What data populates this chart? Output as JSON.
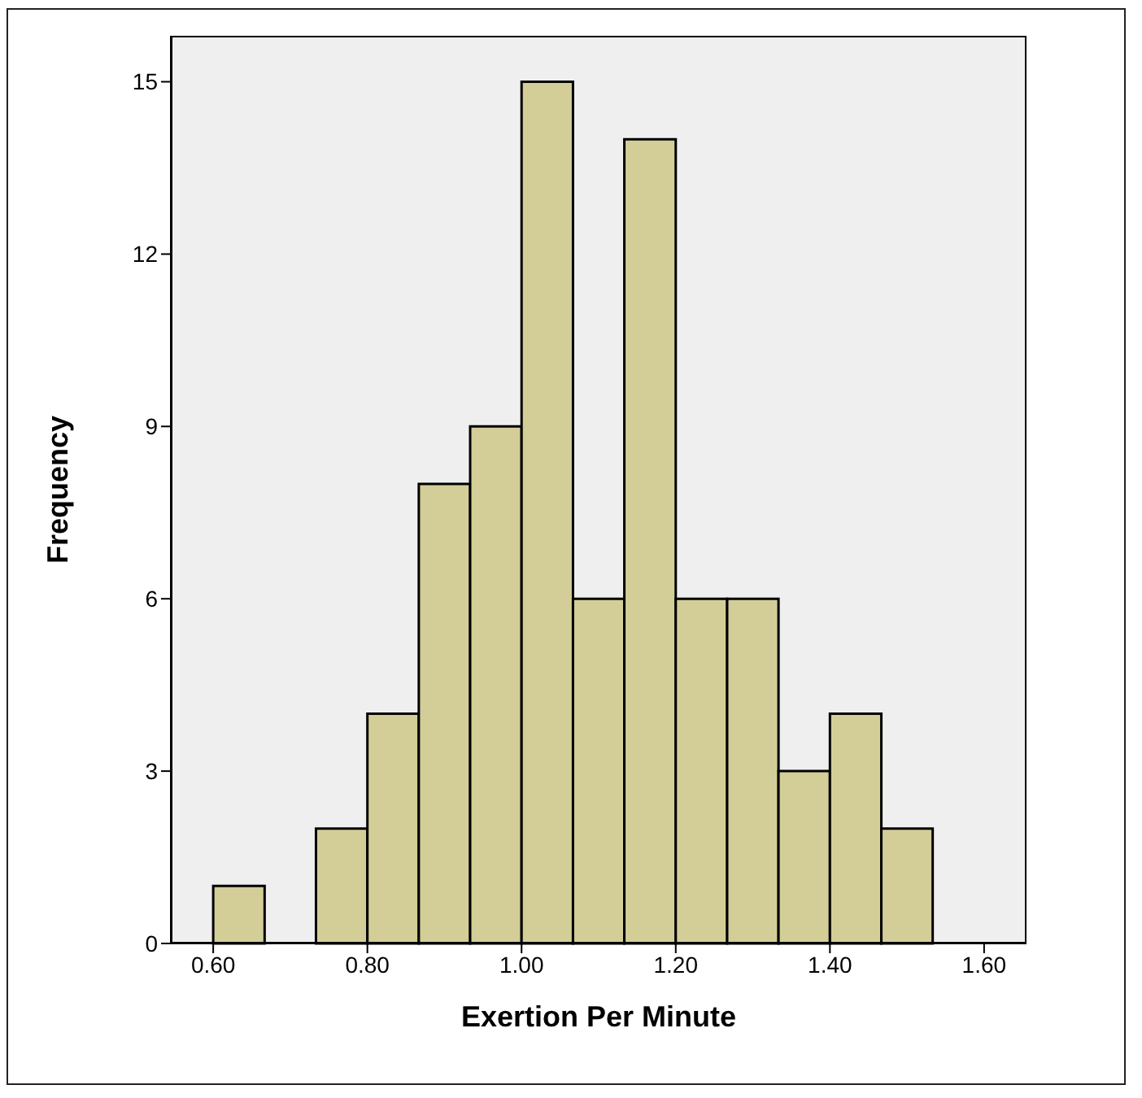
{
  "chart_data": {
    "type": "histogram",
    "xlabel": "Exertion Per Minute",
    "ylabel": "Frequency",
    "bins": [
      0.6,
      0.6667,
      0.7333,
      0.8,
      0.8667,
      0.9333,
      1.0,
      1.0667,
      1.1333,
      1.2,
      1.2667,
      1.3333,
      1.4,
      1.4667,
      1.5333
    ],
    "values": [
      1,
      0,
      2,
      4,
      8,
      9,
      15,
      6,
      14,
      6,
      6,
      3,
      4,
      2
    ],
    "color": "#d3ce97",
    "xlim": [
      0.545,
      1.655
    ],
    "xticks": [
      {
        "value": 0.6,
        "label": "0.60"
      },
      {
        "value": 0.8,
        "label": "0.80"
      },
      {
        "value": 1.0,
        "label": "1.00"
      },
      {
        "value": 1.2,
        "label": "1.20"
      },
      {
        "value": 1.4,
        "label": "1.40"
      },
      {
        "value": 1.6,
        "label": "1.60"
      }
    ],
    "ylim": [
      0,
      15.8
    ],
    "yticks": [
      0,
      3,
      6,
      9,
      12,
      15
    ],
    "grid": false
  }
}
